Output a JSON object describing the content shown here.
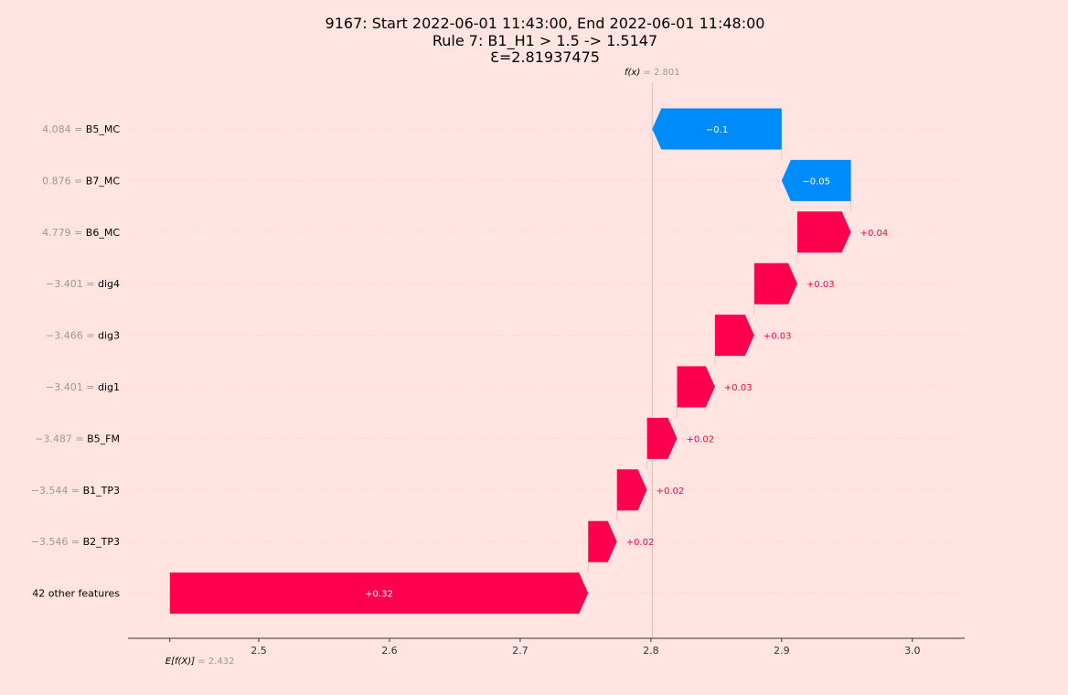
{
  "title_lines": [
    "9167: Start 2022-06-01 11:43:00, End 2022-06-01 11:48:00",
    "Rule 7: B1_H1 > 1.5 -> 1.5147",
    "Ɛ=2.81937475"
  ],
  "colors": {
    "positive": "#ff0051",
    "negative": "#008bfb",
    "background": "#ffe4e1",
    "muted": "#999999"
  },
  "chart_data": {
    "type": "waterfall",
    "x_ticks": [
      2.5,
      2.6,
      2.7,
      2.8,
      2.9,
      3.0
    ],
    "xlim": [
      2.4,
      3.04
    ],
    "base_value": 2.432,
    "base_label_prefix": "E[f(X)]",
    "base_label_value": "= 2.432",
    "fx_value": 2.801,
    "fx_label_prefix": "f(x)",
    "fx_label_value": "= 2.801",
    "features": [
      {
        "value_label": "4.084 =",
        "name": "B5_MC",
        "start": 2.9,
        "end": 2.801,
        "label": "−0.1"
      },
      {
        "value_label": "0.876 =",
        "name": "B7_MC",
        "start": 2.953,
        "end": 2.9,
        "label": "−0.05"
      },
      {
        "value_label": "4.779 =",
        "name": "B6_MC",
        "start": 2.912,
        "end": 2.953,
        "label": "+0.04"
      },
      {
        "value_label": "−3.401 =",
        "name": "dig4",
        "start": 2.879,
        "end": 2.912,
        "label": "+0.03"
      },
      {
        "value_label": "−3.466 =",
        "name": "dig3",
        "start": 2.849,
        "end": 2.879,
        "label": "+0.03"
      },
      {
        "value_label": "−3.401 =",
        "name": "dig1",
        "start": 2.82,
        "end": 2.849,
        "label": "+0.03"
      },
      {
        "value_label": "−3.487 =",
        "name": "B5_FM",
        "start": 2.797,
        "end": 2.82,
        "label": "+0.02"
      },
      {
        "value_label": "−3.544 =",
        "name": "B1_TP3",
        "start": 2.774,
        "end": 2.797,
        "label": "+0.02"
      },
      {
        "value_label": "−3.546 =",
        "name": "B2_TP3",
        "start": 2.752,
        "end": 2.774,
        "label": "+0.02"
      },
      {
        "value_label": "",
        "name": "42 other features",
        "start": 2.432,
        "end": 2.752,
        "label": "+0.32"
      }
    ]
  }
}
